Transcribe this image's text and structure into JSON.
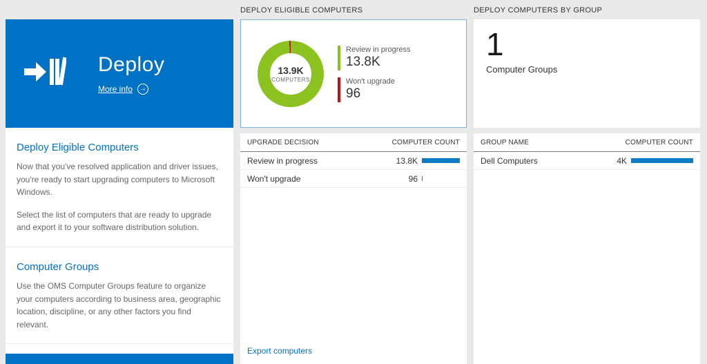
{
  "colors": {
    "tile_blue": "#0072c6",
    "accent_blue": "#0072c6",
    "bar_blue": "#0f7bc4",
    "green": "#8bc220",
    "red": "#ba141a"
  },
  "left_panel": {
    "tile": {
      "title": "Deploy",
      "more_info": "More info"
    },
    "sections": [
      {
        "heading": "Deploy Eligible Computers",
        "paragraphs": [
          "Now that you've resolved application and driver issues, you're ready to start upgrading computers to Microsoft Windows.",
          "Select the list of computers that are ready to upgrade and export it to your software distribution solution."
        ]
      },
      {
        "heading": "Computer Groups",
        "paragraphs": [
          "Use the OMS Computer Groups feature to organize your computers according to business area, geographic location, discipline, or any other factors you find relevant."
        ]
      }
    ]
  },
  "middle_panel": {
    "header": "DEPLOY ELIGIBLE COMPUTERS",
    "table": {
      "columns": [
        "UPGRADE DECISION",
        "COMPUTER COUNT"
      ],
      "rows": [
        {
          "label": "Review in progress",
          "value": "13.8K",
          "bar_pct": 100
        },
        {
          "label": "Won't upgrade",
          "value": "96",
          "bar_pct": 2
        }
      ]
    },
    "footer_link": "Export computers"
  },
  "right_panel": {
    "header": "DEPLOY COMPUTERS BY GROUP",
    "summary": {
      "value": "1",
      "label": "Computer Groups"
    },
    "table": {
      "columns": [
        "GROUP NAME",
        "COMPUTER COUNT"
      ],
      "rows": [
        {
          "label": "Dell Computers",
          "value": "4K",
          "bar_pct": 100
        }
      ]
    }
  },
  "chart_data": {
    "type": "pie",
    "subtype": "donut",
    "title": "DEPLOY ELIGIBLE COMPUTERS",
    "center": {
      "value": "13.9K",
      "label": "COMPUTERS"
    },
    "slices": [
      {
        "label": "Review in progress",
        "value": 13800,
        "display": "13.8K",
        "color": "#8bc220"
      },
      {
        "label": "Won't upgrade",
        "value": 96,
        "display": "96",
        "color": "#ba141a"
      }
    ],
    "legend_position": "right"
  }
}
